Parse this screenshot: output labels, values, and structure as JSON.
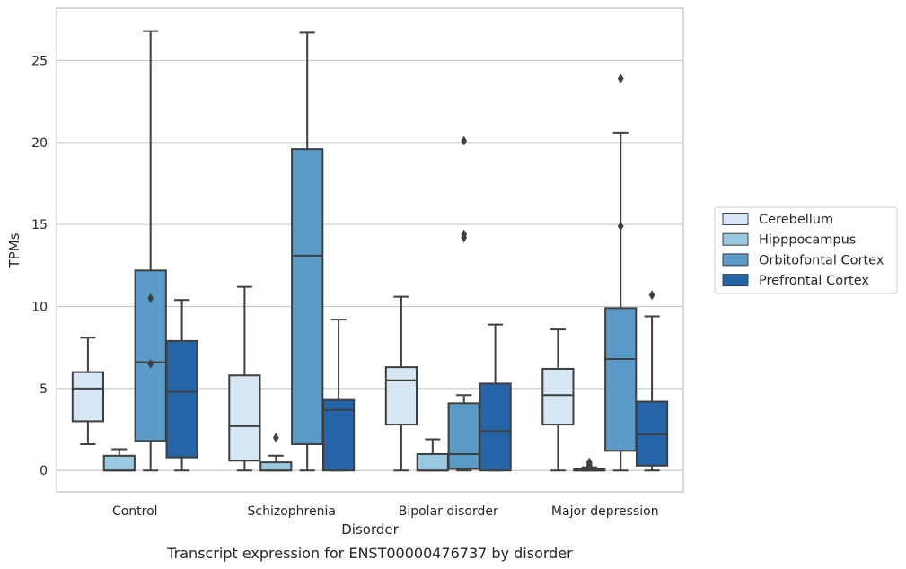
{
  "chart_data": {
    "type": "box",
    "title": "",
    "caption": "Transcript expression for ENST00000476737 by disorder",
    "xlabel": "Disorder",
    "ylabel": "TPMs",
    "ylim": [
      -1.3,
      28.2
    ],
    "yticks": [
      0,
      5,
      10,
      15,
      20,
      25
    ],
    "grid": "horizontal",
    "legend_position": "right",
    "categories": [
      "Control",
      "Schizophrenia",
      "Bipolar disorder",
      "Major depression"
    ],
    "series": [
      {
        "name": "Cerebellum",
        "color": "#d6e6f4",
        "boxes": [
          {
            "min": 1.6,
            "q1": 3.0,
            "median": 5.0,
            "q3": 6.0,
            "max": 8.1,
            "outliers": []
          },
          {
            "min": 0.0,
            "q1": 0.6,
            "median": 2.7,
            "q3": 5.8,
            "max": 11.2,
            "outliers": []
          },
          {
            "min": 0.0,
            "q1": 2.8,
            "median": 5.5,
            "q3": 6.3,
            "max": 10.6,
            "outliers": []
          },
          {
            "min": 0.0,
            "q1": 2.8,
            "median": 4.6,
            "q3": 6.2,
            "max": 8.6,
            "outliers": []
          }
        ]
      },
      {
        "name": "Hipppocampus",
        "color": "#9ac8e0",
        "boxes": [
          {
            "min": 0.0,
            "q1": 0.0,
            "median": 0.0,
            "q3": 0.9,
            "max": 1.3,
            "outliers": []
          },
          {
            "min": 0.0,
            "q1": 0.0,
            "median": 0.0,
            "q3": 0.5,
            "max": 0.9,
            "outliers": [
              2.0
            ]
          },
          {
            "min": 0.0,
            "q1": 0.0,
            "median": 0.0,
            "q3": 1.0,
            "max": 1.9,
            "outliers": []
          },
          {
            "min": 0.0,
            "q1": 0.0,
            "median": 0.0,
            "q3": 0.1,
            "max": 0.2,
            "outliers": [
              0.3,
              0.4,
              0.5
            ]
          }
        ]
      },
      {
        "name": "Orbitofontal Cortex",
        "color": "#5b9bc8",
        "boxes": [
          {
            "min": 0.0,
            "q1": 1.8,
            "median": 6.6,
            "q3": 12.2,
            "max": 26.8,
            "outliers": [
              6.5,
              10.5
            ]
          },
          {
            "min": 0.0,
            "q1": 1.6,
            "median": 13.1,
            "q3": 19.6,
            "max": 26.7,
            "outliers": []
          },
          {
            "min": 0.0,
            "q1": 0.1,
            "median": 1.0,
            "q3": 4.1,
            "max": 4.6,
            "outliers": [
              14.2,
              14.4,
              20.1
            ]
          },
          {
            "min": 0.0,
            "q1": 1.2,
            "median": 6.8,
            "q3": 9.9,
            "max": 20.6,
            "outliers": [
              14.9,
              23.9
            ]
          }
        ]
      },
      {
        "name": "Prefrontal Cortex",
        "color": "#2464a7",
        "boxes": [
          {
            "min": 0.0,
            "q1": 0.8,
            "median": 4.8,
            "q3": 7.9,
            "max": 10.4,
            "outliers": []
          },
          {
            "min": 0.0,
            "q1": 0.0,
            "median": 3.7,
            "q3": 4.3,
            "max": 9.2,
            "outliers": []
          },
          {
            "min": 0.0,
            "q1": 0.0,
            "median": 2.4,
            "q3": 5.3,
            "max": 8.9,
            "outliers": []
          },
          {
            "min": 0.0,
            "q1": 0.3,
            "median": 2.2,
            "q3": 4.2,
            "max": 9.4,
            "outliers": [
              10.7
            ]
          }
        ]
      }
    ]
  }
}
